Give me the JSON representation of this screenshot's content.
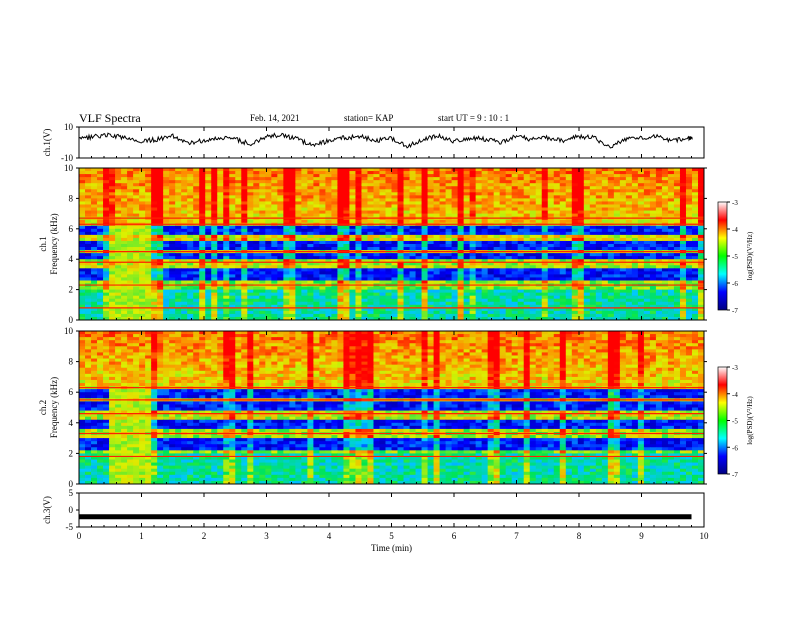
{
  "header": {
    "title": "VLF Spectra",
    "date": "Feb. 14, 2021",
    "station": "station= KAP",
    "start_time": "start UT =  9 : 10 : 1"
  },
  "colorbar": {
    "label": "log(PSD)(V²/Hz)",
    "ticks": [
      -3,
      -4,
      -5,
      -6,
      -7
    ],
    "colors": [
      "#ffffff",
      "#ff0000",
      "#ffff00",
      "#00ff00",
      "#00ffff",
      "#0000ff",
      "#000080"
    ]
  },
  "chart_data": [
    {
      "type": "line",
      "ylabel": "ch.1(V)",
      "ylim": [
        -10,
        10
      ],
      "yticks": [
        10,
        -10
      ],
      "xlim": [
        0,
        10
      ],
      "description_series": "waveform amplitude ch.1",
      "x": [
        0.0,
        0.25,
        0.5,
        0.75,
        1.0,
        1.25,
        1.5,
        1.75,
        2.0,
        2.25,
        2.5,
        2.75,
        3.0,
        3.25,
        3.5,
        3.75,
        4.0,
        4.25,
        4.5,
        4.75,
        5.0,
        5.25,
        5.5,
        5.75,
        6.0,
        6.25,
        6.5,
        6.75,
        7.0,
        7.25,
        7.5,
        7.75,
        8.0,
        8.25,
        8.5,
        8.75,
        9.0,
        9.25,
        9.5,
        9.75
      ],
      "values": [
        2,
        4,
        5,
        3,
        1,
        2,
        4,
        0,
        1,
        3,
        2,
        -1,
        4,
        5,
        2,
        -2,
        1,
        3,
        4,
        1,
        3,
        -3,
        2,
        4,
        1,
        3,
        2,
        0,
        4,
        2,
        3,
        1,
        4,
        3,
        -3,
        2,
        3,
        4,
        1,
        3
      ]
    },
    {
      "type": "heatmap",
      "ylabel": "ch.1  Frequency (kHz)",
      "ylim": [
        0,
        10
      ],
      "yticks": [
        0,
        2,
        4,
        6,
        8,
        10
      ],
      "xlim": [
        0,
        10
      ],
      "value_range": [
        -7,
        -3
      ],
      "strong_bands_khz": [
        0.8,
        2.3,
        3.8,
        4.5,
        6.3,
        6.7
      ],
      "quiet_bands_khz": [
        [
          2.7,
          3.3
        ],
        [
          4.0,
          4.3
        ],
        [
          4.6,
          5.2
        ],
        [
          5.6,
          6.1
        ]
      ],
      "burst_interval_min": [
        0.5,
        1.15
      ]
    },
    {
      "type": "heatmap",
      "ylabel": "ch.2  Frequency (kHz)",
      "ylim": [
        0,
        10
      ],
      "yticks": [
        0,
        2,
        4,
        6,
        8,
        10
      ],
      "xlim": [
        0,
        10
      ],
      "value_range": [
        -7,
        -3
      ],
      "strong_bands_khz": [
        1.8,
        3.3,
        4.6,
        5.5,
        6.3
      ],
      "quiet_bands_khz": [
        [
          2.3,
          3.0
        ],
        [
          3.6,
          4.1
        ],
        [
          4.8,
          5.3
        ],
        [
          5.7,
          6.1
        ]
      ],
      "burst_interval_min": [
        0.5,
        1.15
      ]
    },
    {
      "type": "line",
      "ylabel": "ch.3(V)",
      "ylim": [
        -5,
        5
      ],
      "yticks": [
        5,
        0,
        -5
      ],
      "xlim": [
        0,
        10
      ],
      "xlabel": "Time (min)",
      "xticks": [
        0,
        1,
        2,
        3,
        4,
        5,
        6,
        7,
        8,
        9,
        10
      ],
      "x": [
        0,
        9.8
      ],
      "values": [
        -2,
        -2
      ]
    }
  ]
}
